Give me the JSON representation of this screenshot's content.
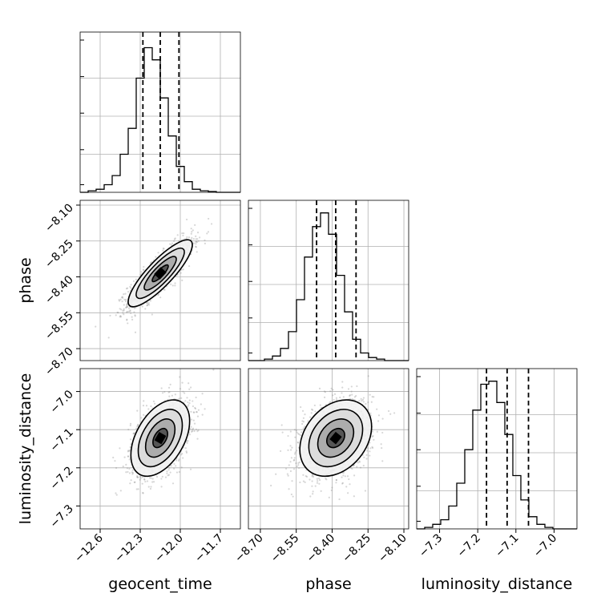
{
  "chart_data": {
    "type": "corner",
    "parameters": [
      "geocent_time",
      "phase",
      "luminosity_distance"
    ],
    "axis_labels": {
      "x": [
        "geocent_time",
        "phase",
        "luminosity_distance"
      ],
      "y": [
        "phase",
        "luminosity_distance"
      ]
    },
    "ranges": {
      "geocent_time": [
        -12.75,
        -11.55
      ],
      "phase": [
        -8.75,
        -8.08
      ],
      "luminosity_distance": [
        -7.36,
        -6.94
      ]
    },
    "ticks": {
      "geocent_time": [
        "−12.6",
        "−12.3",
        "−12.0",
        "−11.7"
      ],
      "phase": [
        "−8.70",
        "−8.55",
        "−8.40",
        "−8.25",
        "−8.10"
      ],
      "luminosity_distance": [
        "−7.3",
        "−7.2",
        "−7.1",
        "−7.0"
      ]
    },
    "tick_values": {
      "geocent_time": [
        -12.6,
        -12.3,
        -12.0,
        -11.7
      ],
      "phase": [
        -8.7,
        -8.55,
        -8.4,
        -8.25,
        -8.1
      ],
      "luminosity_distance": [
        -7.3,
        -7.2,
        -7.1,
        -7.0
      ]
    },
    "quantiles": {
      "geocent_time": [
        -12.28,
        -12.15,
        -12.01
      ],
      "phase": [
        -8.465,
        -8.385,
        -8.3
      ],
      "luminosity_distance": [
        -7.177,
        -7.123,
        -7.067
      ]
    },
    "histograms": {
      "geocent_time": {
        "edges_start": -12.75,
        "bin_width": 0.06,
        "counts": [
          0,
          0.01,
          0.02,
          0.05,
          0.11,
          0.25,
          0.42,
          0.75,
          0.95,
          0.87,
          0.62,
          0.37,
          0.17,
          0.07,
          0.02,
          0.01,
          0.005,
          0,
          0,
          0
        ]
      },
      "phase": {
        "edges_start": -8.75,
        "bin_width": 0.0335,
        "counts": [
          0,
          0,
          0.01,
          0.03,
          0.08,
          0.19,
          0.4,
          0.68,
          0.88,
          0.97,
          0.83,
          0.56,
          0.32,
          0.14,
          0.05,
          0.02,
          0.01,
          0,
          0,
          0
        ]
      },
      "luminosity_distance": {
        "edges_start": -7.36,
        "bin_width": 0.021,
        "counts": [
          0,
          0.01,
          0.03,
          0.06,
          0.15,
          0.3,
          0.52,
          0.78,
          0.95,
          0.97,
          0.83,
          0.62,
          0.35,
          0.19,
          0.08,
          0.03,
          0.01,
          0,
          0,
          0
        ]
      }
    },
    "pairs": [
      {
        "x": "geocent_time",
        "y": "phase",
        "center": [
          -12.15,
          -8.385
        ],
        "sd": [
          0.12,
          0.07
        ],
        "corr": 0.85
      },
      {
        "x": "geocent_time",
        "y": "luminosity_distance",
        "center": [
          -12.15,
          -7.122
        ],
        "sd": [
          0.11,
          0.05
        ],
        "corr": 0.45
      },
      {
        "x": "phase",
        "y": "luminosity_distance",
        "center": [
          -8.385,
          -7.122
        ],
        "sd": [
          0.075,
          0.05
        ],
        "corr": 0.3
      }
    ],
    "grid": true,
    "colors": {
      "line": "#000000",
      "scatter": "#8c8c8c",
      "grid": "#b0b0b0"
    }
  }
}
